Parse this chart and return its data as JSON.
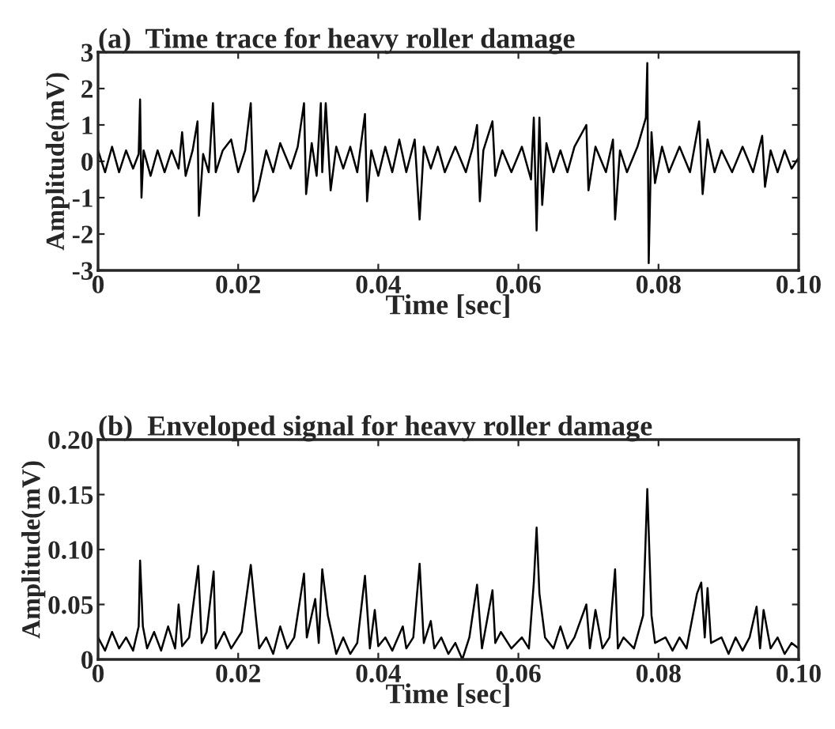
{
  "chart_data": [
    {
      "type": "line",
      "title": "(a)  Time trace for heavy roller damage",
      "xlabel": "Time [sec]",
      "ylabel": "Amplitude(mV)",
      "xlim": [
        0,
        0.1
      ],
      "xticks": [
        0,
        0.02,
        0.04,
        0.06,
        0.08,
        {
          "value": 0.1,
          "label": "0.10"
        }
      ],
      "ylim": [
        -3,
        3
      ],
      "yticks": [
        -3,
        -2,
        -1,
        0,
        1,
        2,
        3
      ],
      "grid": false,
      "marker": "none",
      "line_style": "solid",
      "series": [
        {
          "color": "#000000",
          "x": [
            0,
            0.001,
            0.002,
            0.003,
            0.004,
            0.005,
            0.0058,
            0.006,
            0.0062,
            0.0065,
            0.0075,
            0.0085,
            0.0095,
            0.0105,
            0.0115,
            0.012,
            0.0125,
            0.0135,
            0.0142,
            0.0144,
            0.015,
            0.0158,
            0.0164,
            0.0168,
            0.0178,
            0.019,
            0.02,
            0.021,
            0.0218,
            0.0222,
            0.0228,
            0.024,
            0.025,
            0.026,
            0.0275,
            0.0285,
            0.0294,
            0.0297,
            0.0305,
            0.0312,
            0.0318,
            0.032,
            0.0325,
            0.0332,
            0.034,
            0.035,
            0.036,
            0.037,
            0.0381,
            0.0384,
            0.039,
            0.04,
            0.041,
            0.042,
            0.043,
            0.044,
            0.0452,
            0.0459,
            0.0465,
            0.0475,
            0.0485,
            0.0495,
            0.051,
            0.0525,
            0.0535,
            0.0541,
            0.0545,
            0.055,
            0.0563,
            0.0567,
            0.0577,
            0.059,
            0.0605,
            0.0618,
            0.0622,
            0.0626,
            0.063,
            0.0634,
            0.064,
            0.065,
            0.066,
            0.067,
            0.068,
            0.0697,
            0.07,
            0.071,
            0.0725,
            0.0735,
            0.0738,
            0.0745,
            0.0755,
            0.077,
            0.0782,
            0.0784,
            0.0786,
            0.079,
            0.0795,
            0.0805,
            0.0815,
            0.083,
            0.0845,
            0.0858,
            0.0863,
            0.087,
            0.088,
            0.089,
            0.0905,
            0.092,
            0.0935,
            0.0948,
            0.0952,
            0.096,
            0.097,
            0.098,
            0.099,
            0.1
          ],
          "values": [
            0.3,
            -0.3,
            0.4,
            -0.3,
            0.3,
            -0.2,
            0.2,
            1.7,
            -1.0,
            0.3,
            -0.4,
            0.3,
            -0.3,
            0.3,
            -0.2,
            0.8,
            -0.4,
            0.3,
            1.1,
            -1.5,
            0.2,
            -0.3,
            1.6,
            -0.3,
            0.3,
            0.6,
            -0.3,
            0.3,
            1.6,
            -1.1,
            -0.8,
            0.3,
            -0.3,
            0.5,
            -0.2,
            0.4,
            1.6,
            -0.9,
            0.5,
            -0.4,
            1.6,
            -0.3,
            1.6,
            -0.8,
            0.4,
            -0.2,
            0.4,
            -0.3,
            1.3,
            -1.1,
            0.3,
            -0.4,
            0.4,
            -0.3,
            0.6,
            -0.3,
            0.6,
            -1.6,
            0.4,
            -0.2,
            0.4,
            -0.3,
            0.4,
            -0.3,
            0.4,
            1.0,
            -1.1,
            0.3,
            1.1,
            -0.4,
            0.3,
            -0.3,
            0.4,
            -0.5,
            1.2,
            -1.9,
            1.2,
            -1.2,
            0.5,
            -0.3,
            0.3,
            -0.3,
            0.4,
            1.0,
            -0.8,
            0.4,
            -0.3,
            0.6,
            -1.6,
            0.3,
            -0.3,
            0.4,
            1.2,
            2.7,
            -2.8,
            0.8,
            -0.6,
            0.4,
            -0.3,
            0.4,
            -0.3,
            1.1,
            -0.9,
            0.6,
            -0.3,
            0.3,
            -0.3,
            0.4,
            -0.3,
            0.7,
            -0.7,
            0.3,
            -0.3,
            0.3,
            -0.2,
            0.1
          ]
        }
      ]
    },
    {
      "type": "line",
      "title": "(b)  Enveloped signal for heavy roller damage",
      "xlabel": "Time [sec]",
      "ylabel": "Amplitude(mV)",
      "xlim": [
        0,
        0.1
      ],
      "xticks": [
        0,
        0.02,
        0.04,
        0.06,
        0.08,
        {
          "value": 0.1,
          "label": "0.10"
        }
      ],
      "ylim": [
        0,
        0.2
      ],
      "yticks": [
        0,
        {
          "value": 0.05,
          "label": "0.05"
        },
        {
          "value": 0.1,
          "label": "0.10"
        },
        0.15,
        {
          "value": 0.2,
          "label": "0.20"
        }
      ],
      "grid": false,
      "marker": "none",
      "line_style": "solid",
      "series": [
        {
          "color": "#000000",
          "x": [
            0,
            0.001,
            0.002,
            0.003,
            0.004,
            0.005,
            0.0058,
            0.006,
            0.0064,
            0.007,
            0.008,
            0.009,
            0.01,
            0.011,
            0.0115,
            0.012,
            0.013,
            0.0143,
            0.0148,
            0.0155,
            0.0165,
            0.0168,
            0.018,
            0.019,
            0.0205,
            0.0218,
            0.0225,
            0.023,
            0.024,
            0.025,
            0.026,
            0.027,
            0.028,
            0.0294,
            0.0298,
            0.031,
            0.0315,
            0.032,
            0.0328,
            0.0335,
            0.034,
            0.035,
            0.036,
            0.037,
            0.0381,
            0.0388,
            0.0395,
            0.04,
            0.041,
            0.042,
            0.0435,
            0.044,
            0.045,
            0.0459,
            0.0465,
            0.0475,
            0.048,
            0.049,
            0.05,
            0.051,
            0.052,
            0.053,
            0.0541,
            0.0548,
            0.0563,
            0.0567,
            0.0575,
            0.059,
            0.0605,
            0.0615,
            0.0622,
            0.0626,
            0.063,
            0.0638,
            0.065,
            0.066,
            0.067,
            0.068,
            0.0697,
            0.0702,
            0.071,
            0.072,
            0.073,
            0.0738,
            0.0742,
            0.075,
            0.0765,
            0.0778,
            0.0784,
            0.079,
            0.0795,
            0.081,
            0.082,
            0.083,
            0.084,
            0.0855,
            0.0861,
            0.0866,
            0.087,
            0.0875,
            0.089,
            0.09,
            0.091,
            0.092,
            0.093,
            0.094,
            0.0945,
            0.095,
            0.096,
            0.097,
            0.098,
            0.099,
            0.1
          ],
          "values": [
            0.02,
            0.008,
            0.025,
            0.01,
            0.02,
            0.008,
            0.03,
            0.09,
            0.03,
            0.01,
            0.025,
            0.008,
            0.03,
            0.01,
            0.05,
            0.012,
            0.02,
            0.085,
            0.015,
            0.025,
            0.08,
            0.01,
            0.025,
            0.01,
            0.025,
            0.086,
            0.04,
            0.01,
            0.02,
            0.005,
            0.03,
            0.01,
            0.02,
            0.078,
            0.02,
            0.055,
            0.015,
            0.082,
            0.04,
            0.02,
            0.005,
            0.02,
            0.005,
            0.015,
            0.076,
            0.01,
            0.045,
            0.012,
            0.02,
            0.008,
            0.03,
            0.01,
            0.02,
            0.087,
            0.015,
            0.035,
            0.01,
            0.02,
            0.005,
            0.015,
            0.0,
            0.02,
            0.068,
            0.01,
            0.063,
            0.015,
            0.025,
            0.01,
            0.02,
            0.01,
            0.07,
            0.12,
            0.06,
            0.02,
            0.01,
            0.03,
            0.01,
            0.02,
            0.05,
            0.01,
            0.045,
            0.01,
            0.02,
            0.082,
            0.01,
            0.02,
            0.01,
            0.04,
            0.155,
            0.04,
            0.015,
            0.02,
            0.008,
            0.02,
            0.01,
            0.06,
            0.07,
            0.02,
            0.065,
            0.015,
            0.02,
            0.005,
            0.02,
            0.008,
            0.02,
            0.048,
            0.01,
            0.045,
            0.01,
            0.02,
            0.005,
            0.015,
            0.01
          ]
        }
      ]
    }
  ]
}
